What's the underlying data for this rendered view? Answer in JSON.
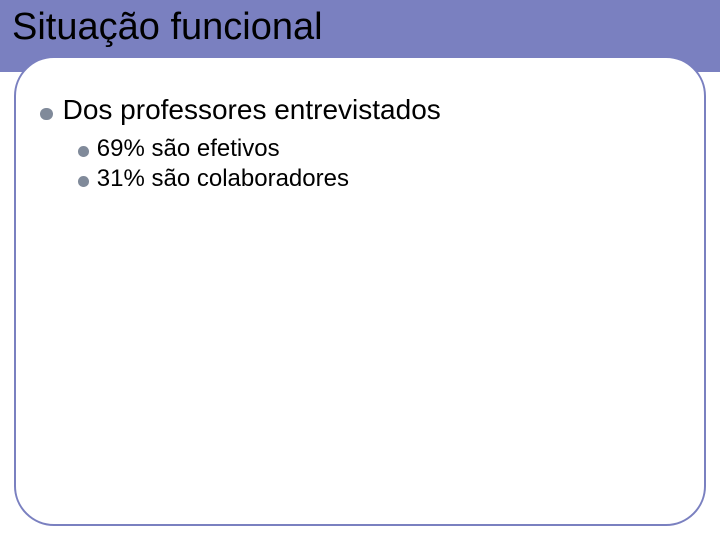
{
  "colors": {
    "band": "#7a80c0",
    "box_border": "#7a80c0",
    "bullet_lvl1": "#808a9a",
    "bullet_lvl2": "#808a9a",
    "title_text": "#000000",
    "body_text": "#000000",
    "background": "#ffffff"
  },
  "typography": {
    "title_fontsize": 38,
    "lvl1_fontsize": 28,
    "lvl2_fontsize": 24,
    "font_family": "Arial"
  },
  "layout": {
    "slide_width": 720,
    "slide_height": 540,
    "band_height": 72,
    "box_radius": 40,
    "box_border_width": 2.5
  },
  "title": "Situação funcional",
  "bullets": {
    "lvl1": {
      "text": "Dos professores entrevistados",
      "children": [
        {
          "text": "69% são efetivos"
        },
        {
          "text": "31% são colaboradores"
        }
      ]
    }
  }
}
